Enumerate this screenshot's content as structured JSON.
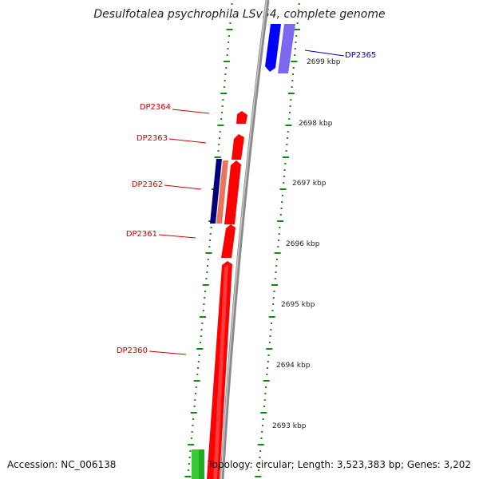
{
  "title": "Desulfotalea psychrophila LSv54, complete genome",
  "accession": "Accession: NC_006138",
  "summary": "Topology: circular; Length: 3,523,383 bp; Genes: 3,202",
  "scale_labels": [
    "2699 kbp",
    "2698 kbp",
    "2697 kbp",
    "2696 kbp",
    "2695 kbp",
    "2694 kbp",
    "2693 kbp"
  ],
  "gene_labels": [
    {
      "text": "DP2365",
      "color": "#0000cc",
      "side": "right"
    },
    {
      "text": "DP2364",
      "color": "#cc0000",
      "side": "left"
    },
    {
      "text": "DP2363",
      "color": "#cc0000",
      "side": "left"
    },
    {
      "text": "DP2362",
      "color": "#cc0000",
      "side": "left"
    },
    {
      "text": "DP2361",
      "color": "#cc0000",
      "side": "left"
    },
    {
      "text": "DP2360",
      "color": "#cc0000",
      "side": "left"
    }
  ],
  "colors": {
    "forward_strand": "#ff0000",
    "reverse_strand": "#0000ff",
    "reverse_light": "#7b68ee",
    "navy": "#00007a",
    "salmon": "#e8755a",
    "green": "#33cc33",
    "backbone": "#8a8a8a",
    "ticks": "#118811"
  }
}
